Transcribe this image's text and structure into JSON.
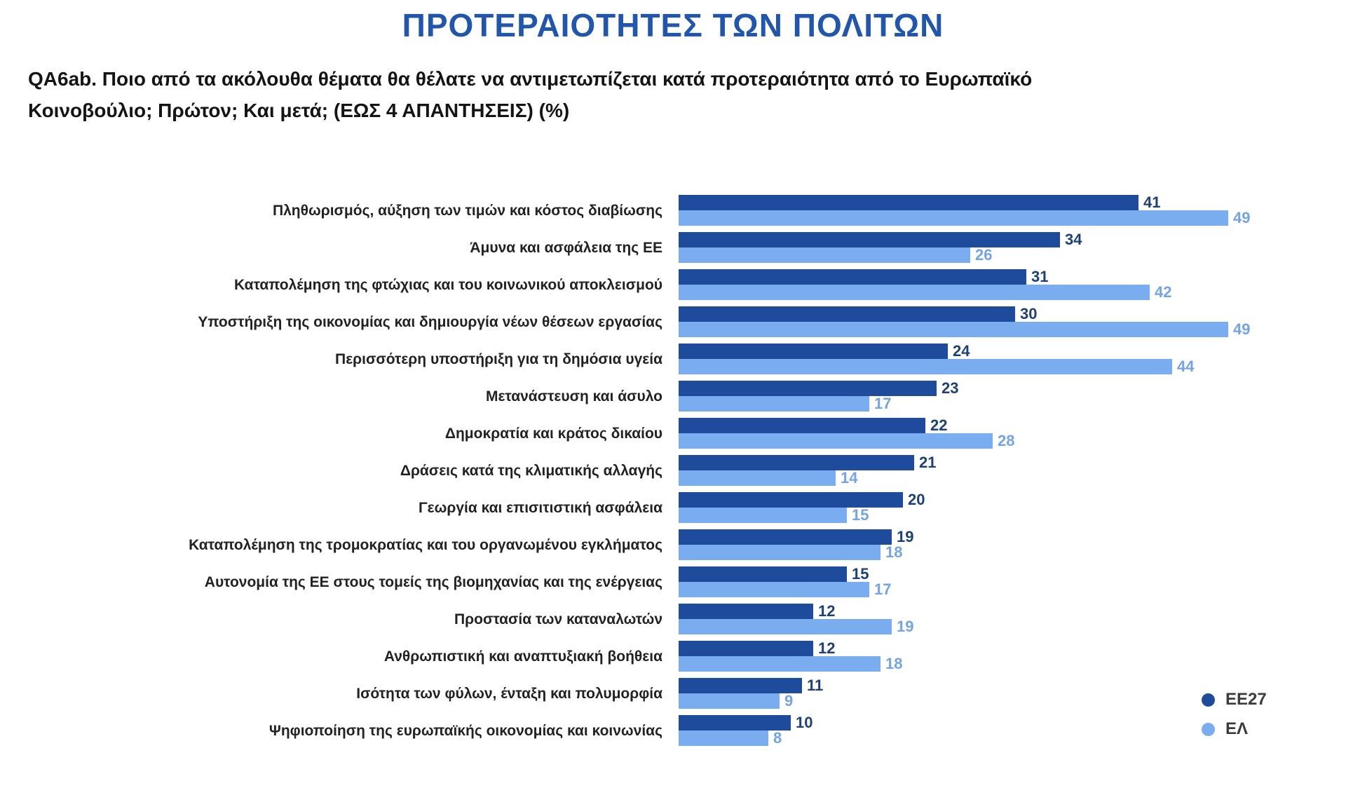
{
  "title": "ΠΡΟΤΕΡΑΙΟΤΗΤΕΣ ΤΩΝ ΠΟΛΙΤΩΝ",
  "subtitle": "QA6ab. Ποιο από τα ακόλουθα θέματα θα θέλατε να αντιμετωπίζεται κατά προτεραιότητα από το Ευρωπαϊκό Κοινοβούλιο; Πρώτον;  Και μετά; (ΕΩΣ 4 ΑΠΑΝΤΗΣΕΙΣ) (%)",
  "colors": {
    "title_blue": "#2156AE",
    "ee27_bar": "#1F4B9D",
    "el_bar": "#7AACF0",
    "ee27_value_text": "#1E4078",
    "el_value_text": "#74A3E6"
  },
  "legend": {
    "items": [
      {
        "label": "ΕΕ27",
        "color": "#1F4B9D"
      },
      {
        "label": "ΕΛ",
        "color": "#7AACF0"
      }
    ],
    "position": "bottom-right"
  },
  "chart_data": {
    "type": "bar",
    "orientation": "horizontal",
    "unit": "%",
    "value_labels": true,
    "grid": false,
    "xlim": [
      0,
      52
    ],
    "categories": [
      "Πληθωρισμός, αύξηση των τιμών και κόστος διαβίωσης",
      "Άμυνα και ασφάλεια της ΕΕ",
      "Καταπολέμηση της φτώχιας και του κοινωνικού αποκλεισμού",
      "Υποστήριξη της οικονομίας και δημιουργία νέων θέσεων εργασίας",
      "Περισσότερη υποστήριξη για τη δημόσια υγεία",
      "Μετανάστευση και άσυλο",
      "Δημοκρατία και κράτος δικαίου",
      "Δράσεις κατά της κλιματικής αλλαγής",
      "Γεωργία και επισιτιστική ασφάλεια",
      "Καταπολέμηση της τρομοκρατίας και του οργανωμένου εγκλήματος",
      "Αυτονομία της ΕΕ στους τομείς της βιομηχανίας και της ενέργειας",
      "Προστασία των καταναλωτών",
      "Ανθρωπιστική και αναπτυξιακή βοήθεια",
      "Ισότητα των φύλων, ένταξη και πολυμορφία",
      "Ψηφιοποίηση της ευρωπαϊκής οικονομίας και κοινωνίας"
    ],
    "series": [
      {
        "name": "ΕΕ27",
        "color": "#1F4B9D",
        "values": [
          41,
          34,
          31,
          30,
          24,
          23,
          22,
          21,
          20,
          19,
          15,
          12,
          12,
          11,
          10
        ]
      },
      {
        "name": "ΕΛ",
        "color": "#7AACF0",
        "values": [
          49,
          26,
          42,
          49,
          44,
          17,
          28,
          14,
          15,
          18,
          17,
          19,
          18,
          9,
          8
        ]
      }
    ]
  }
}
